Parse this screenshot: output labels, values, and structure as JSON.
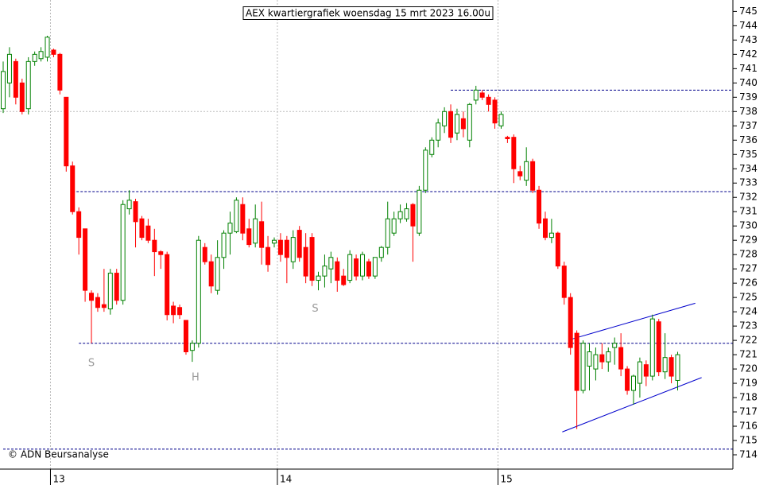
{
  "chart_data": {
    "type": "candlestick",
    "title": "AEX kwartiergrafiek woensdag 15 mrt 2023 16.00u",
    "copyright": "© ADN Beursanalyse",
    "up_color": "#008000",
    "down_color": "#ff0000",
    "categories": [
      null,
      null,
      null,
      null,
      null,
      null,
      null,
      null,
      "13",
      null,
      null,
      null,
      null,
      null,
      null,
      null,
      null,
      null,
      null,
      null,
      null,
      null,
      null,
      null,
      null,
      null,
      null,
      null,
      null,
      null,
      null,
      null,
      null,
      null,
      null,
      null,
      null,
      null,
      null,
      null,
      null,
      null,
      null,
      null,
      "14",
      null,
      null,
      null,
      null,
      null,
      null,
      null,
      null,
      null,
      null,
      null,
      null,
      null,
      null,
      null,
      null,
      null,
      null,
      null,
      null,
      null,
      null,
      null,
      null,
      null,
      null,
      null,
      null,
      null,
      null,
      null,
      null,
      null,
      null,
      "15",
      null,
      null,
      null,
      null,
      null,
      null,
      null,
      null,
      null,
      null,
      null,
      null,
      null,
      null,
      null,
      null,
      null,
      null,
      null,
      null,
      null,
      null,
      null,
      null,
      null,
      null,
      null,
      null
    ],
    "open": [
      738.2,
      740,
      741.5,
      740,
      738.2,
      741.5,
      741.7,
      741.8,
      742.3,
      742,
      739,
      734.2,
      731,
      729.8,
      725.3,
      725,
      724.5,
      724.2,
      726.7,
      724.8,
      731.2,
      731.7,
      730.5,
      730,
      729,
      728.2,
      728,
      724.4,
      724.3,
      723.4,
      721.3,
      721.8,
      728.5,
      727.5,
      725.5,
      727.8,
      729.5,
      729.6,
      731.5,
      729.8,
      728.8,
      730.3,
      728.5,
      728.8,
      729,
      729,
      727.5,
      729.7,
      728.5,
      729.2,
      726.2,
      726.5,
      727,
      727.5,
      726.5,
      726.2,
      727.7,
      726.5,
      727.5,
      726.5,
      727.8,
      728.5,
      729.5,
      730.5,
      730.5,
      731.5,
      729.5,
      732.5,
      735,
      736,
      737,
      738,
      736.5,
      737.5,
      736,
      738.8,
      739.3,
      739,
      738.8,
      737,
      736.2,
      736.2,
      733.8,
      733.2,
      734.5,
      732.5,
      730.5,
      729.2,
      729.5,
      727.2,
      725,
      722.5,
      718.5,
      720.2,
      720,
      721,
      720.5,
      721.5,
      721.5,
      720,
      718.5,
      719,
      720.3,
      719.5,
      723.3,
      719.8,
      720.8,
      719.2
    ],
    "high": [
      741.5,
      742.5,
      741.7,
      740.3,
      741.8,
      742.2,
      742.5,
      743.3,
      742.4,
      742.1,
      739,
      734.5,
      731.3,
      729.8,
      725.5,
      725.3,
      727,
      727,
      727,
      731.8,
      732.5,
      731.9,
      730.7,
      730.5,
      729.8,
      728.3,
      728.2,
      724.7,
      724.5,
      723.4,
      722,
      729.3,
      728.8,
      728,
      729,
      729.7,
      731,
      732,
      732,
      730.5,
      731.5,
      731.7,
      729.3,
      729.2,
      729.5,
      729.3,
      729.7,
      730,
      729.5,
      729.5,
      726.8,
      728,
      728.2,
      727.8,
      727,
      728.3,
      728,
      728.2,
      727.7,
      727.8,
      728.6,
      731.7,
      731,
      731.5,
      731.6,
      731.6,
      732.8,
      735.5,
      736.2,
      737.5,
      738.3,
      738.5,
      738.2,
      738,
      738.6,
      739.8,
      739.5,
      739.2,
      739,
      738,
      736.3,
      736.4,
      734.2,
      735.5,
      734.7,
      732.8,
      731,
      730.5,
      729.6,
      727.5,
      725.3,
      722.7,
      722,
      721.8,
      721.5,
      721.8,
      721.5,
      722.2,
      722.5,
      720.2,
      719.6,
      720.8,
      720.6,
      723.8,
      723.5,
      722.5,
      721,
      721.2
    ],
    "low": [
      737.9,
      739,
      738.5,
      737.8,
      737.8,
      741.2,
      741.5,
      741.5,
      741.8,
      739.2,
      733.8,
      730.8,
      728,
      724.7,
      721.8,
      724,
      724,
      723.8,
      724.5,
      724.5,
      730.8,
      728.5,
      729,
      728.8,
      726.5,
      727,
      723.4,
      723.2,
      723.5,
      721,
      720.5,
      721.5,
      727.3,
      725.3,
      725.2,
      727,
      728,
      729.5,
      729,
      728.5,
      728.5,
      727.3,
      726.8,
      728.5,
      727.5,
      726,
      727,
      727.5,
      726,
      725.8,
      725.5,
      725.7,
      726,
      725.4,
      725.8,
      726,
      726.2,
      726.2,
      726.3,
      726.3,
      727.5,
      728,
      729.3,
      730.2,
      730.3,
      727.5,
      729.3,
      732.3,
      734.8,
      735.5,
      736.5,
      735.8,
      736,
      736.2,
      735.5,
      738.5,
      738.8,
      738,
      736.8,
      736.8,
      735.8,
      733,
      733.2,
      732.8,
      732.3,
      729.8,
      729,
      728.8,
      727,
      724.5,
      721,
      715.8,
      718.3,
      718.5,
      719.2,
      720,
      719.8,
      720.3,
      719.5,
      718.2,
      717.5,
      718,
      718.8,
      719.2,
      719.5,
      719.3,
      719,
      718.5
    ],
    "close": [
      740.8,
      742,
      739,
      738,
      741.5,
      742,
      742.2,
      743.2,
      742,
      739.5,
      734.2,
      731,
      729.2,
      725.5,
      724.8,
      724.3,
      724.3,
      726.7,
      724.8,
      731.5,
      731.8,
      730.3,
      729.2,
      729,
      728.2,
      728,
      723.8,
      723.8,
      723.8,
      721.2,
      721.8,
      729,
      727.5,
      725.8,
      727.8,
      729.5,
      730.2,
      731.8,
      729.5,
      728.7,
      730.5,
      728.5,
      727.3,
      729,
      728,
      727.8,
      729.2,
      727.8,
      726.5,
      726.2,
      726.5,
      727.2,
      727.8,
      726.2,
      725.9,
      728,
      726.5,
      728,
      726.5,
      727.8,
      728.5,
      730.5,
      730.5,
      731,
      731.2,
      730,
      732.5,
      735.3,
      736,
      737.2,
      738,
      736.2,
      737.8,
      736.8,
      738.5,
      739.5,
      739,
      738.5,
      737.2,
      737.8,
      736.1,
      734,
      733.5,
      734.5,
      732.5,
      730.2,
      729.2,
      729.5,
      727.2,
      725,
      721.5,
      718.5,
      721.8,
      721.2,
      721,
      720.5,
      721.2,
      721.8,
      720,
      718.5,
      719.5,
      720.5,
      719.5,
      723.5,
      719.8,
      720.8,
      719.5,
      721
    ],
    "ylim": [
      713,
      745.8
    ],
    "yticks": [
      714,
      715,
      716,
      717,
      718,
      719,
      720,
      721,
      722,
      723,
      724,
      725,
      726,
      727,
      728,
      729,
      730,
      731,
      732,
      733,
      734,
      735,
      736,
      737,
      738,
      739,
      740,
      741,
      742,
      743,
      744,
      745
    ],
    "grid_y": [
      738
    ],
    "hlines": [
      {
        "from": 71,
        "value": 739.5
      },
      {
        "from": 11,
        "value": 732.4
      },
      {
        "from": 12,
        "value": 721.8
      },
      {
        "from": 0,
        "value": 714.4
      }
    ],
    "trendlines": [
      {
        "x": [
          90.3,
          109.8
        ],
        "y": [
          722.1,
          724.6
        ]
      },
      {
        "x": [
          88.7,
          110.8
        ],
        "y": [
          715.6,
          719.4
        ]
      }
    ],
    "annotations": [
      {
        "text": "S",
        "x": 14,
        "y": 720.4
      },
      {
        "text": "H",
        "x": 30.5,
        "y": 719.4
      },
      {
        "text": "S",
        "x": 49.5,
        "y": 724.2
      }
    ]
  }
}
